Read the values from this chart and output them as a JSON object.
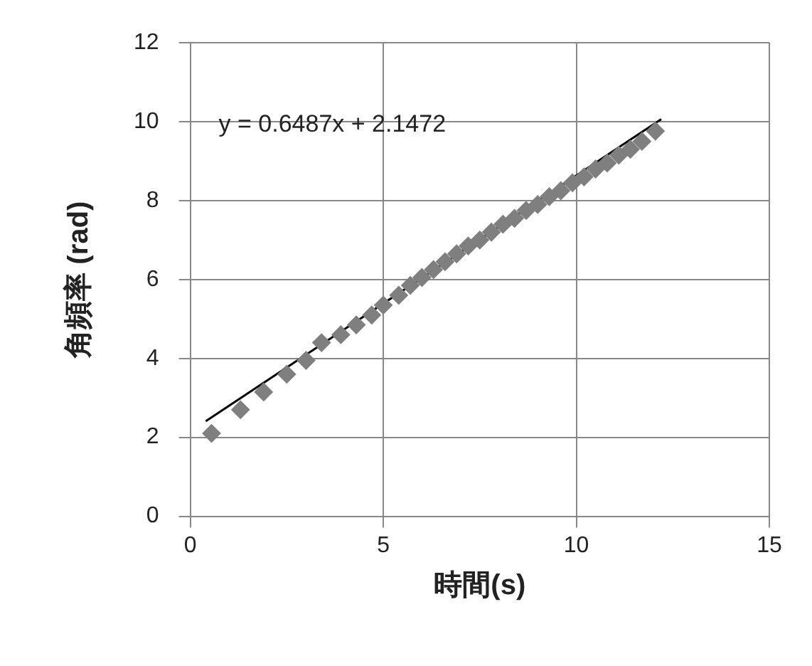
{
  "chart_data": {
    "type": "scatter",
    "xlabel": "時間(s)",
    "ylabel": "角頻率 (rad)",
    "xlim": [
      0,
      15
    ],
    "xticks": [
      0,
      5,
      10,
      15
    ],
    "ylim": [
      0,
      12
    ],
    "yticks": [
      0,
      2,
      4,
      6,
      8,
      10,
      12
    ],
    "grid": true,
    "legend": false,
    "marker": "diamond",
    "annotations": [
      "y = 0.6487x + 2.1472"
    ],
    "series": [
      {
        "color": "#7f7f7f",
        "x": [
          0.55,
          1.3,
          1.9,
          2.5,
          3.0,
          3.4,
          3.9,
          4.3,
          4.7,
          5.0,
          5.4,
          5.7,
          6.0,
          6.3,
          6.6,
          6.9,
          7.2,
          7.5,
          7.8,
          8.1,
          8.4,
          8.7,
          9.0,
          9.3,
          9.6,
          9.9,
          10.2,
          10.5,
          10.8,
          11.1,
          11.4,
          11.7,
          12.05
        ],
        "values": [
          2.1,
          2.7,
          3.15,
          3.6,
          3.95,
          4.4,
          4.6,
          4.85,
          5.1,
          5.35,
          5.6,
          5.85,
          6.05,
          6.25,
          6.45,
          6.65,
          6.85,
          7.0,
          7.2,
          7.4,
          7.55,
          7.75,
          7.9,
          8.1,
          8.25,
          8.45,
          8.6,
          8.8,
          8.95,
          9.15,
          9.3,
          9.5,
          9.76
        ]
      },
      {
        "type": "line",
        "color": "#000000",
        "marker": "none",
        "x": [
          0.4,
          12.2
        ],
        "values": [
          2.41,
          10.06
        ]
      }
    ]
  }
}
